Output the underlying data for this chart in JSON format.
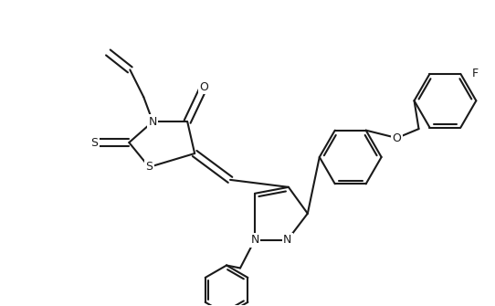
{
  "bg": "#ffffff",
  "lc": "#1a1a1a",
  "lw": 1.5,
  "fs": 9.0,
  "dpi": 100,
  "fw": 5.42,
  "fh": 3.35,
  "xlim": [
    0,
    542
  ],
  "ylim": [
    0,
    335
  ]
}
